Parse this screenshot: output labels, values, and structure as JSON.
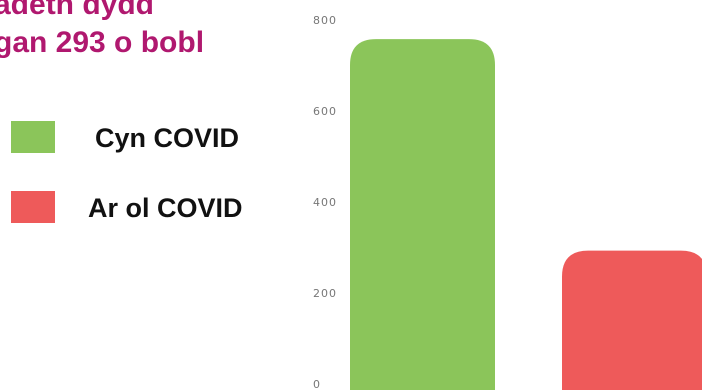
{
  "title_lines": [
    "adeth dydd",
    "gan 293 o bobl"
  ],
  "colors": {
    "title": "#b0186f",
    "before": "#8bc55a",
    "after": "#ee5a5a",
    "tick": "#777777"
  },
  "legend": [
    {
      "label": "Cyn COVID",
      "color": "#8bc55a"
    },
    {
      "label": "Ar ol COVID",
      "color": "#ee5a5a"
    }
  ],
  "chart_data": {
    "type": "bar",
    "categories": [
      "Cyn COVID",
      "Ar ol COVID"
    ],
    "values": [
      758,
      293
    ],
    "colors": [
      "#8bc55a",
      "#ee5a5a"
    ],
    "ylim": [
      0,
      800
    ],
    "y_ticks": [
      0,
      200,
      400,
      600,
      800
    ],
    "xlabel": "",
    "ylabel": "",
    "grid": false,
    "legend_position": "left"
  }
}
